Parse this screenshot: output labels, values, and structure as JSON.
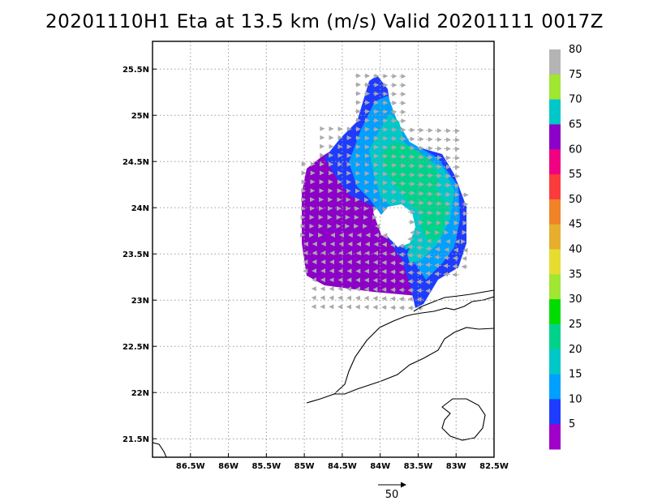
{
  "title": "20201110H1 Eta at 13.5 km (m/s) Valid 20201111 0017Z",
  "map": {
    "lon_range": [
      -87.0,
      -82.5
    ],
    "lat_range": [
      21.3,
      25.8
    ],
    "x_ticks": [
      {
        "lon": -86.5,
        "label": "86.5W"
      },
      {
        "lon": -86.0,
        "label": "86W"
      },
      {
        "lon": -85.5,
        "label": "85.5W"
      },
      {
        "lon": -85.0,
        "label": "85W"
      },
      {
        "lon": -84.5,
        "label": "84.5W"
      },
      {
        "lon": -84.0,
        "label": "84W"
      },
      {
        "lon": -83.5,
        "label": "83.5W"
      },
      {
        "lon": -83.0,
        "label": "83W"
      },
      {
        "lon": -82.5,
        "label": "82.5W"
      }
    ],
    "y_ticks": [
      {
        "lat": 25.5,
        "label": "25.5N"
      },
      {
        "lat": 25.0,
        "label": "25N"
      },
      {
        "lat": 24.5,
        "label": "24.5N"
      },
      {
        "lat": 24.0,
        "label": "24N"
      },
      {
        "lat": 23.5,
        "label": "23.5N"
      },
      {
        "lat": 23.0,
        "label": "23N"
      },
      {
        "lat": 22.5,
        "label": "22.5N"
      },
      {
        "lat": 22.0,
        "label": "22N"
      },
      {
        "lat": 21.5,
        "label": "21.5N"
      }
    ],
    "grid": "dotted",
    "reference_vector": {
      "label": "50",
      "value": 50
    }
  },
  "colorbar": {
    "labels": [
      "5",
      "10",
      "15",
      "20",
      "25",
      "30",
      "35",
      "40",
      "45",
      "50",
      "55",
      "60",
      "65",
      "70",
      "75",
      "80"
    ],
    "colors": [
      "#a000c8",
      "#1e3cff",
      "#00a0ff",
      "#00c8c8",
      "#00d28c",
      "#00dc00",
      "#a0e632",
      "#e6dc32",
      "#e6af2d",
      "#f08228",
      "#fa3c3c",
      "#f00082",
      "#8c00c8",
      "#00c8c8",
      "#a0e632",
      "#b4b4b4"
    ]
  },
  "colors": {
    "coastline": "#000000",
    "arrows": "#aaaaaa",
    "violet": "#8c00c8",
    "blue": "#1e3cff",
    "lightblue": "#00a0ff",
    "cyan": "#00c8c8",
    "green": "#00d28c"
  }
}
